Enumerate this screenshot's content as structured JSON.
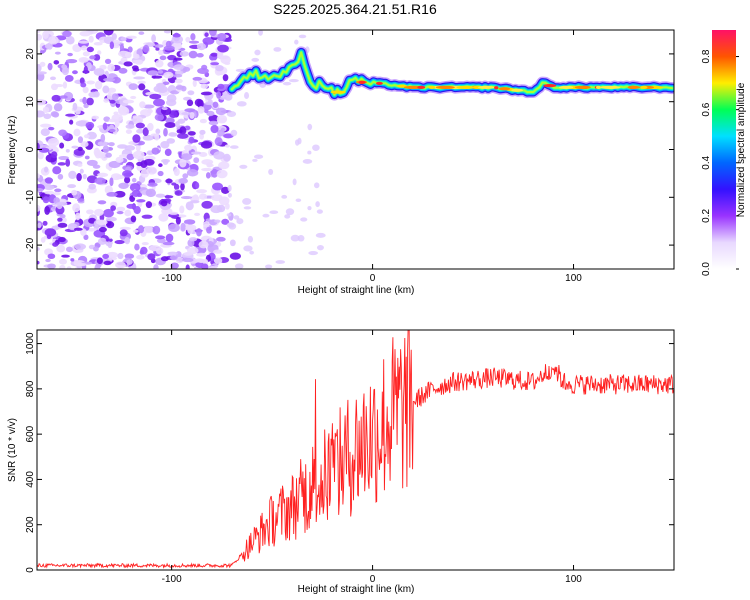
{
  "title": "S225.2025.364.21.51.R16",
  "chart_data": [
    {
      "type": "heatmap",
      "xlabel": "Height of straight line (km)",
      "ylabel": "Frequency (Hz)",
      "xlim": [
        -167,
        150
      ],
      "ylim": [
        -25,
        25
      ],
      "xticks": [
        -100,
        0,
        100
      ],
      "yticks": [
        -20,
        -10,
        0,
        10,
        20
      ],
      "colorbar": {
        "label": "Normalized spectral amplitude",
        "range": [
          0,
          0.9
        ],
        "ticks": [
          0.0,
          0.2,
          0.4,
          0.6,
          0.8
        ],
        "colormap": [
          "#ffffff",
          "#e8d8ff",
          "#9933ff",
          "#3311ff",
          "#0066ff",
          "#00e0ff",
          "#00ff55",
          "#ffee00",
          "#ff5500",
          "#ff1166"
        ]
      },
      "ridge": {
        "description_x": [
          -70,
          -60,
          -50,
          -40,
          -35,
          -30,
          -25,
          -20,
          -15,
          -10,
          -5,
          0,
          20,
          40,
          60,
          80,
          85,
          90,
          100,
          150
        ],
        "frequency_hz": [
          13,
          16,
          15,
          17,
          20,
          13,
          14,
          12,
          12,
          15,
          14,
          14,
          13,
          13,
          13,
          12,
          14,
          13,
          13,
          13
        ]
      }
    },
    {
      "type": "line",
      "xlabel": "Height of straight line (km)",
      "ylabel": "SNR (10 * v/v)",
      "xlim": [
        -167,
        150
      ],
      "ylim": [
        0,
        1060
      ],
      "xticks": [
        -100,
        0,
        100
      ],
      "yticks": [
        0,
        200,
        400,
        600,
        800,
        1000
      ],
      "color": "#ff2020",
      "x": [
        -167,
        -100,
        -70,
        -60,
        -50,
        -40,
        -30,
        -20,
        -10,
        0,
        10,
        20,
        30,
        40,
        60,
        80,
        90,
        95,
        100,
        120,
        150
      ],
      "values": [
        20,
        20,
        20,
        120,
        220,
        280,
        370,
        430,
        520,
        600,
        680,
        740,
        800,
        830,
        850,
        830,
        900,
        830,
        820,
        820,
        820
      ]
    }
  ]
}
